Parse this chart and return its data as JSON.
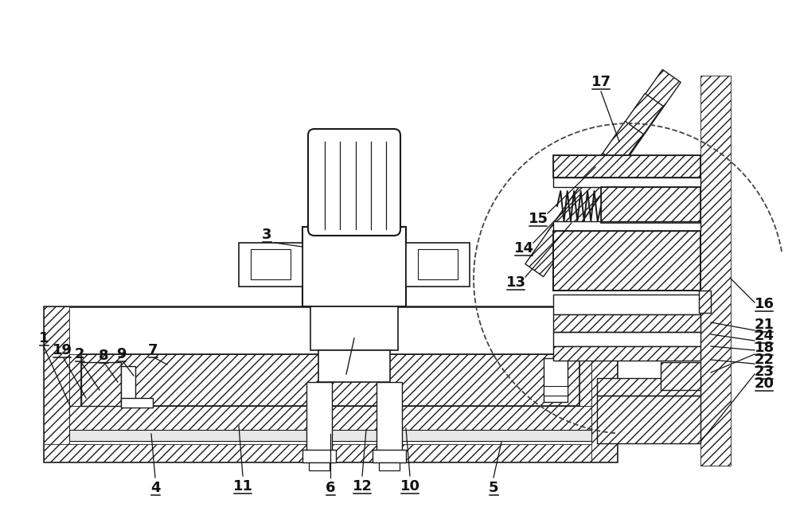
{
  "bg_color": "#ffffff",
  "lc": "#1a1a1a",
  "font_size": 13,
  "fig_w": 10.0,
  "fig_h": 6.47,
  "dpi": 100
}
